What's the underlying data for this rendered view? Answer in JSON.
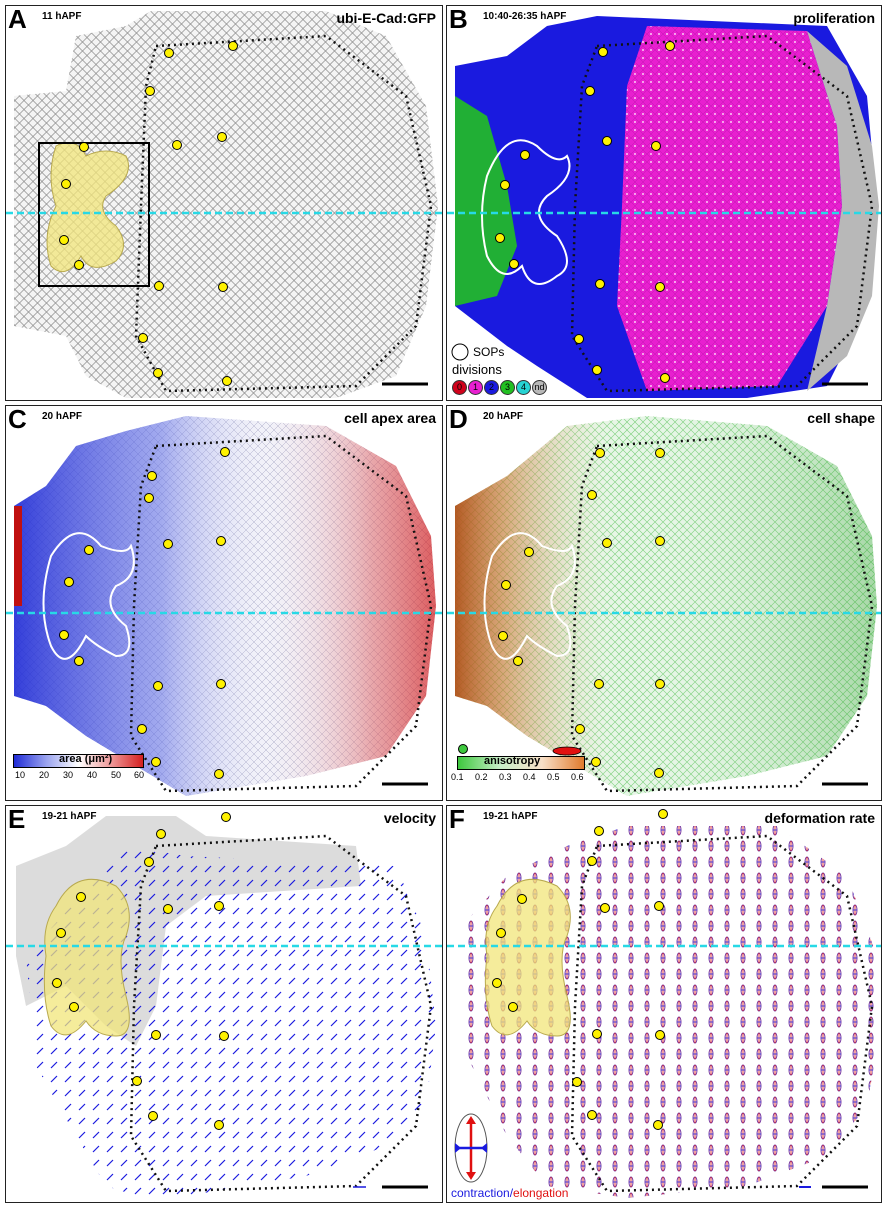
{
  "panels": [
    {
      "letter": "A",
      "time": "11 hAPF",
      "title": "ubi-E-Cad:GFP"
    },
    {
      "letter": "B",
      "time": "10:40-26:35 hAPF",
      "title": "proliferation"
    },
    {
      "letter": "C",
      "time": "20 hAPF",
      "title": "cell apex area"
    },
    {
      "letter": "D",
      "time": "20 hAPF",
      "title": "cell shape"
    },
    {
      "letter": "E",
      "time": "19-21 hAPF",
      "title": "velocity"
    },
    {
      "letter": "F",
      "time": "19-21 hAPF",
      "title": "deformation rate"
    }
  ],
  "legend_b": {
    "sops_label": "SOPs",
    "divisions_label": "divisions",
    "division_classes": [
      {
        "label": "0",
        "color": "#d0021b"
      },
      {
        "label": "1",
        "color": "#e81fd0"
      },
      {
        "label": "2",
        "color": "#1a1adf"
      },
      {
        "label": "3",
        "color": "#22c022"
      },
      {
        "label": "4",
        "color": "#27d3d3"
      },
      {
        "label": "nd",
        "color": "#b8b8b8"
      }
    ]
  },
  "colorbar_c": {
    "label": "area (μm²)",
    "ticks": [
      "10",
      "20",
      "30",
      "40",
      "50",
      "60"
    ],
    "low_color": "#1f2bd6",
    "high_color": "#d41f1f"
  },
  "colorbar_d": {
    "label": "anisotropy",
    "ticks": [
      "0.1",
      "0.2",
      "0.3",
      "0.4",
      "0.5",
      "0.6"
    ],
    "low_color": "#3ec83e",
    "high_color": "#e07a2c"
  },
  "legend_f": {
    "contraction": "contraction",
    "slash": "/",
    "elongation": "elongation"
  },
  "colors": {
    "midline": "#27d9e6",
    "sop_marker": "#fff200",
    "hinge": "#f2e67a",
    "contraction": "#1a1adf",
    "elongation": "#e01010"
  }
}
